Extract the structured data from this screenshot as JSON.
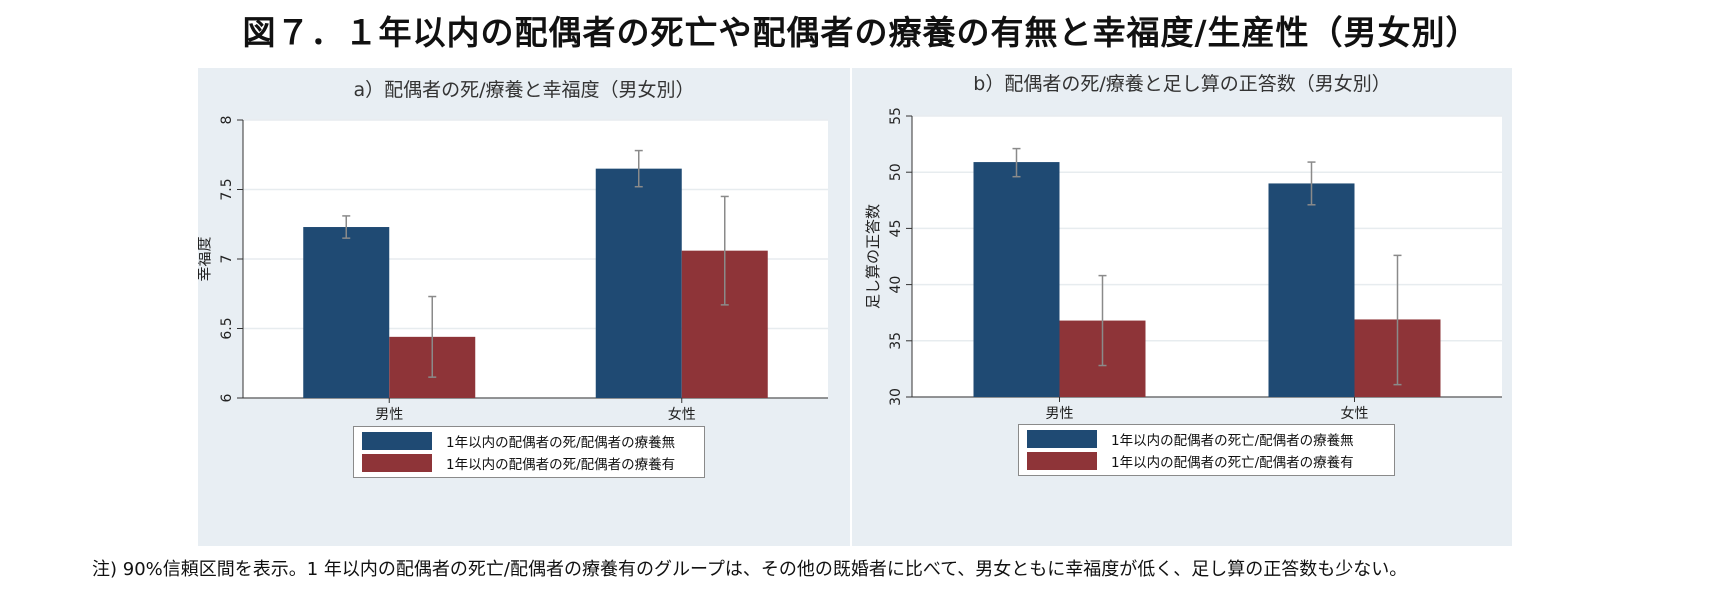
{
  "title": "図７．１年以内の配偶者の死亡や配偶者の療養の有無と幸福度/生産性（男女別）",
  "footnote": "注) 90%信頼区間を表示。1 年以内の配偶者の死亡/配偶者の療養有のグループは、その他の既婚者に比べて、男女ともに幸福度が低く、足し算の正答数も少ない。",
  "colors": {
    "series_no": "#1f4a73",
    "series_yes": "#8e3438",
    "plot_bg": "#ffffff",
    "panel_bg": "#e8eef3",
    "grid": "#e7ecef",
    "errbar": "#8a8a8a"
  },
  "chart_data": [
    {
      "type": "bar",
      "title": "a）配偶者の死/療養と幸福度（男女別）",
      "xlabel": "",
      "ylabel": "幸福度",
      "ylim": [
        6,
        8
      ],
      "yticks": [
        6,
        6.5,
        7,
        7.5,
        8
      ],
      "ytick_labels": [
        "6",
        "6.5",
        "7",
        "7.5",
        "8"
      ],
      "categories": [
        "男性",
        "女性"
      ],
      "series": [
        {
          "name": "1年以内の配偶者の死/配偶者の療養無",
          "values": [
            7.23,
            7.65
          ],
          "ci_low": [
            7.15,
            7.52
          ],
          "ci_high": [
            7.31,
            7.78
          ]
        },
        {
          "name": "1年以内の配偶者の死/配偶者の療養有",
          "values": [
            6.44,
            7.06
          ],
          "ci_low": [
            6.15,
            6.67
          ],
          "ci_high": [
            6.73,
            7.45
          ]
        }
      ],
      "legend": "bottom"
    },
    {
      "type": "bar",
      "title": "b）配偶者の死/療養と足し算の正答数（男女別）",
      "xlabel": "",
      "ylabel": "足し算の正答数",
      "ylim": [
        30,
        55
      ],
      "yticks": [
        30,
        35,
        40,
        45,
        50,
        55
      ],
      "ytick_labels": [
        "30",
        "35",
        "40",
        "45",
        "50",
        "55"
      ],
      "categories": [
        "男性",
        "女性"
      ],
      "series": [
        {
          "name": "1年以内の配偶者の死亡/配偶者の療養無",
          "values": [
            50.9,
            49.0
          ],
          "ci_low": [
            49.6,
            47.1
          ],
          "ci_high": [
            52.1,
            50.9
          ]
        },
        {
          "name": "1年以内の配偶者の死亡/配偶者の療養有",
          "values": [
            36.8,
            36.9
          ],
          "ci_low": [
            32.8,
            31.1
          ],
          "ci_high": [
            40.8,
            42.6
          ]
        }
      ],
      "legend": "bottom"
    }
  ]
}
